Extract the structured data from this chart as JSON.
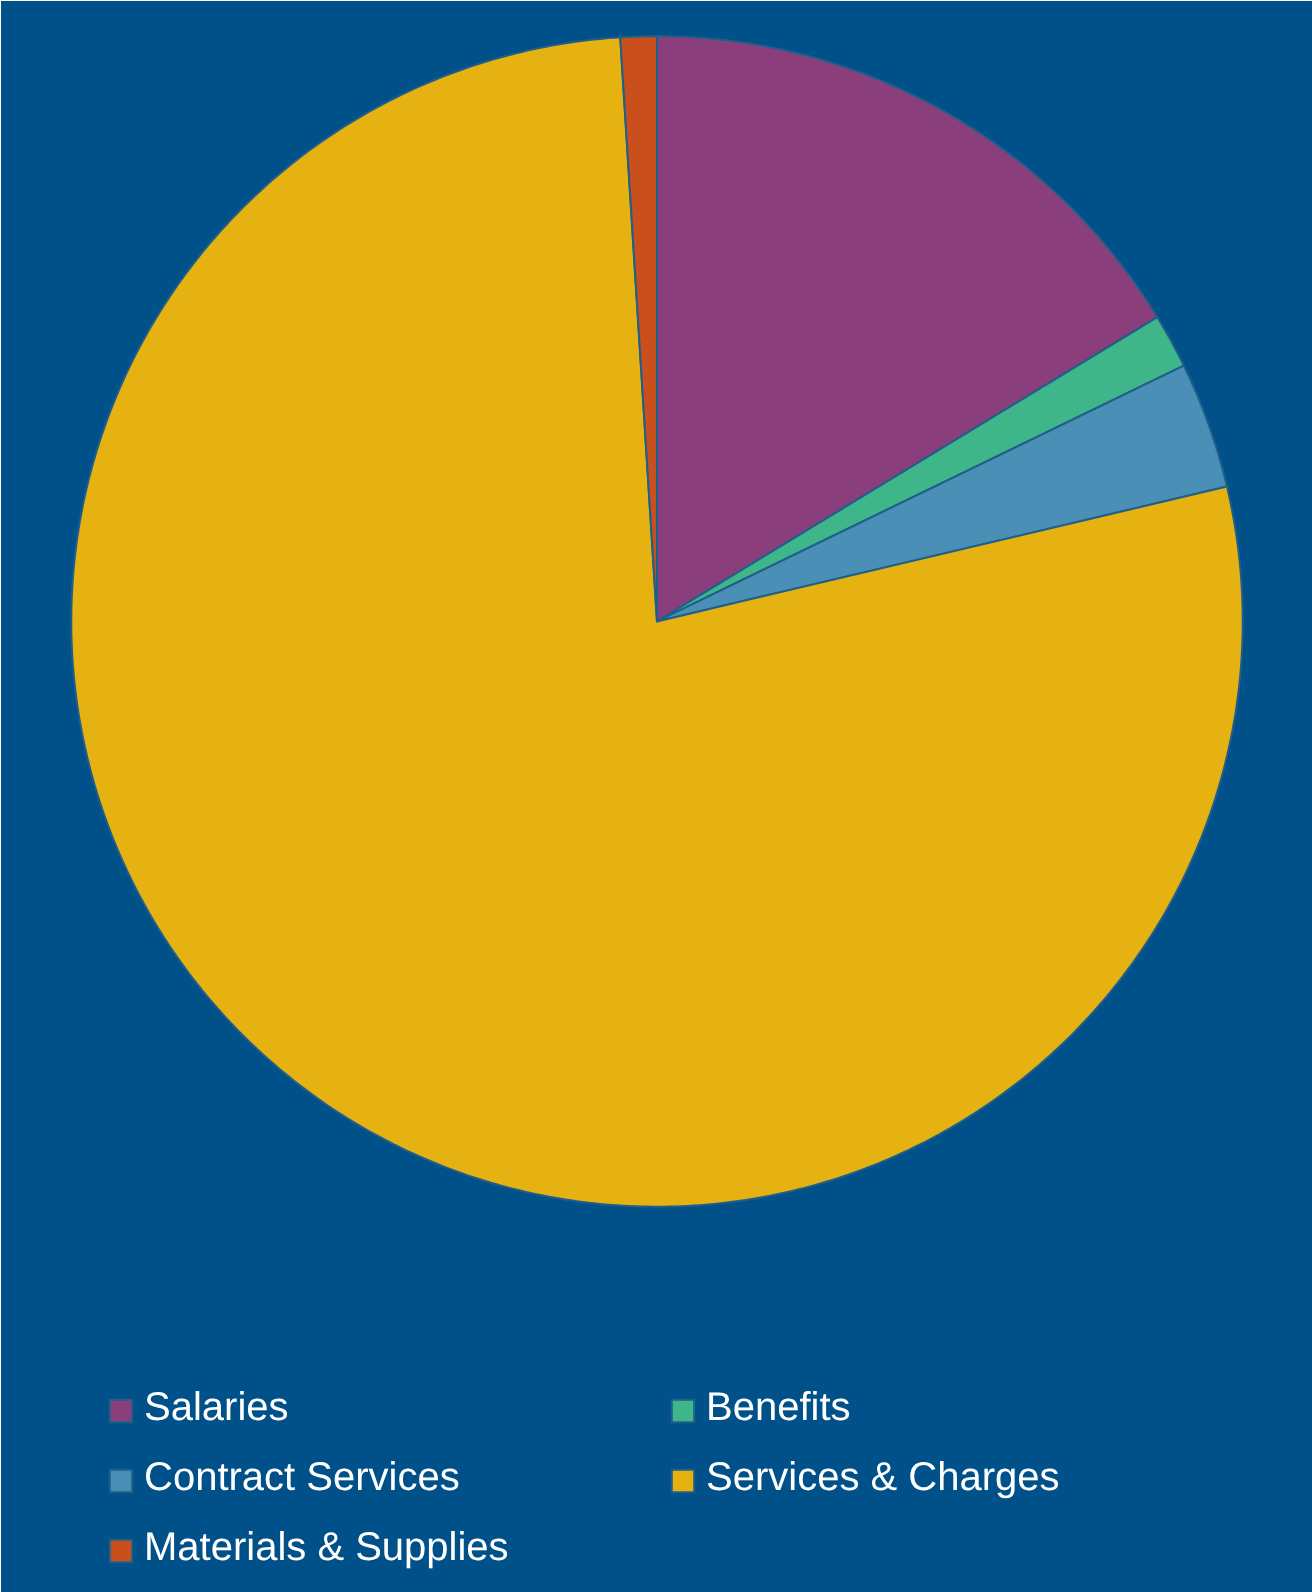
{
  "chart_data": {
    "type": "pie",
    "categories": [
      "Salaries",
      "Benefits",
      "Contract Services",
      "Services & Charges",
      "Materials & Supplies"
    ],
    "values": [
      16.3,
      1.5,
      3.5,
      77.7,
      1.0
    ],
    "colors": [
      "#8a3f7c",
      "#3fb58a",
      "#4a8fb5",
      "#e6b212",
      "#c9501c"
    ],
    "legend": "bottom"
  }
}
